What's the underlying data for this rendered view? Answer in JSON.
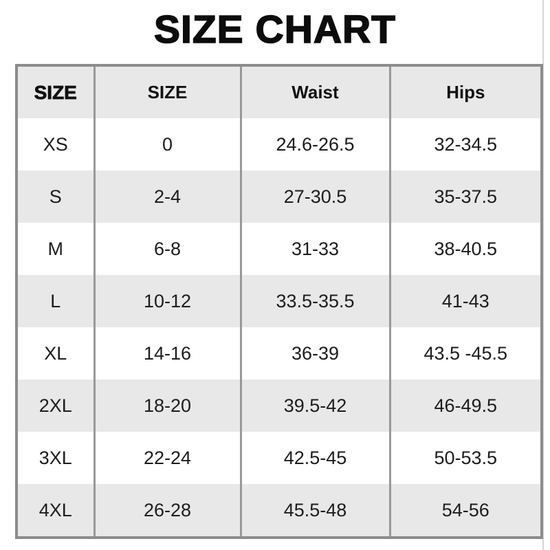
{
  "title": "SIZE CHART",
  "colors": {
    "row_alt_background": "#e8e8e8",
    "outer_border": "#8c8c8c",
    "inner_border": "#989898",
    "text": "#1c1c1c"
  },
  "table": {
    "columns": [
      {
        "label": "SIZE"
      },
      {
        "label": "SIZE"
      },
      {
        "label": "Waist"
      },
      {
        "label": "Hips"
      }
    ],
    "rows": [
      {
        "size": "XS",
        "size_number": "0",
        "waist": "24.6-26.5",
        "hips": "32-34.5"
      },
      {
        "size": "S",
        "size_number": "2-4",
        "waist": "27-30.5",
        "hips": "35-37.5"
      },
      {
        "size": "M",
        "size_number": "6-8",
        "waist": "31-33",
        "hips": "38-40.5"
      },
      {
        "size": "L",
        "size_number": "10-12",
        "waist": "33.5-35.5",
        "hips": "41-43"
      },
      {
        "size": "XL",
        "size_number": "14-16",
        "waist": "36-39",
        "hips": "43.5 -45.5"
      },
      {
        "size": "2XL",
        "size_number": "18-20",
        "waist": "39.5-42",
        "hips": "46-49.5"
      },
      {
        "size": "3XL",
        "size_number": "22-24",
        "waist": "42.5-45",
        "hips": "50-53.5"
      },
      {
        "size": "4XL",
        "size_number": "26-28",
        "waist": "45.5-48",
        "hips": "54-56"
      }
    ]
  }
}
